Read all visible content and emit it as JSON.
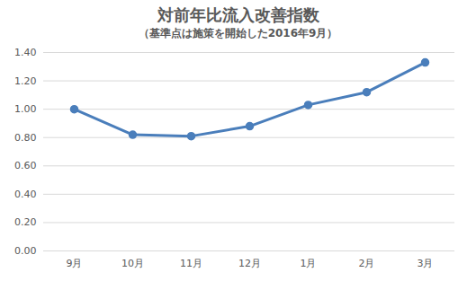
{
  "chart_data": {
    "type": "line",
    "title": "対前年比流入改善指数",
    "subtitle": "（基準点は施策を開始した2016年9月）",
    "categories": [
      "9月",
      "10月",
      "11月",
      "12月",
      "1月",
      "2月",
      "3月"
    ],
    "values": [
      1.0,
      0.82,
      0.81,
      0.88,
      1.03,
      1.12,
      1.33
    ],
    "color": "#4a7ebb",
    "marker": "circle",
    "ylim": [
      0,
      1.4
    ],
    "yticks": [
      {
        "value": 0,
        "label": "0.00"
      },
      {
        "value": 0.2,
        "label": "0.20"
      },
      {
        "value": 0.4,
        "label": "0.40"
      },
      {
        "value": 0.6,
        "label": "0.60"
      },
      {
        "value": 0.8,
        "label": "0.80"
      },
      {
        "value": 1.0,
        "label": "1.00"
      },
      {
        "value": 1.2,
        "label": "1.20"
      },
      {
        "value": 1.4,
        "label": "1.40"
      }
    ],
    "grid": true
  }
}
